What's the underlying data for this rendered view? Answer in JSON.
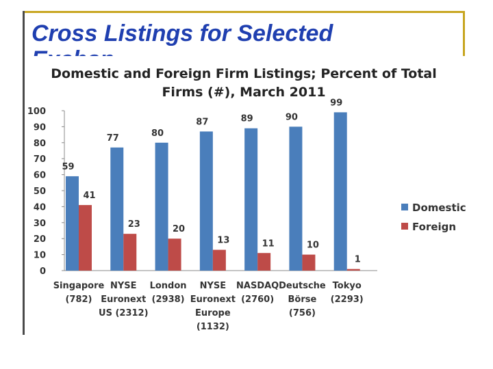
{
  "slide": {
    "title": "Cross Listings for Selected",
    "title_line2": "Exchanges"
  },
  "colors": {
    "domestic": "#4a7ebb",
    "foreign": "#be4b48",
    "frame_gold": "#c7a51f",
    "title_blue": "#1f3fb0"
  },
  "chart_data": {
    "type": "bar",
    "title_lines": [
      "Domestic and Foreign Firm Listings; Percent of Total",
      "Firms (#), March 2011"
    ],
    "categories": [
      [
        "Singapore",
        "(782)"
      ],
      [
        "NYSE",
        "Euronext",
        "US (2312)"
      ],
      [
        "London",
        "(2938)"
      ],
      [
        "NYSE",
        "Euronext",
        "Europe",
        "(1132)"
      ],
      [
        "NASDAQ",
        "(2760)"
      ],
      [
        "Deutsche",
        "Börse",
        "(756)"
      ],
      [
        "Tokyo",
        "(2293)"
      ]
    ],
    "series": [
      {
        "name": "Domestic",
        "values": [
          59,
          77,
          80,
          87,
          89,
          90,
          99
        ]
      },
      {
        "name": "Foreign",
        "values": [
          41,
          23,
          20,
          13,
          11,
          10,
          1
        ]
      }
    ],
    "ylim": [
      0,
      100
    ],
    "yticks": [
      0,
      10,
      20,
      30,
      40,
      50,
      60,
      70,
      80,
      90,
      100
    ],
    "grid": false,
    "legend": "right"
  }
}
